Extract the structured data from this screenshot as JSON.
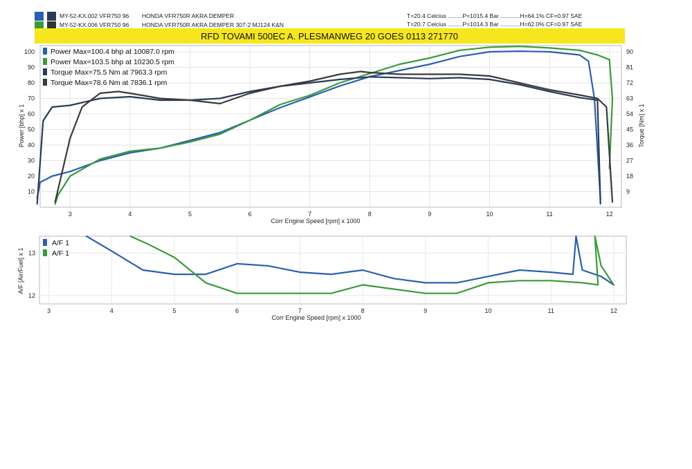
{
  "header": {
    "runs": [
      {
        "id": "MY-52-KX.002 VFR750 96",
        "desc": "HONDA VFR750R AKRA DEMPER",
        "colors": [
          "#2a5fb0",
          "#2b3a5a"
        ]
      },
      {
        "id": "MY-52-KX.006 VFR750 96",
        "desc": "HONDA VFR750R AKRA DEMPER 307-2 MJ124 K&N",
        "colors": [
          "#3a9a3a",
          "#333333"
        ]
      }
    ],
    "conditions": [
      "T=20.4 Celcius .........P=1015.4 Bar ............H=64.1% CF=0.97 SAE",
      "T=20.7 Celcius .........P=1014.3 Bar ............H=62.0% CF=0.97 SAE"
    ],
    "banner": "RFD TOVAMI 500EC  A. PLESMANWEG 20 GOES 0113 271770",
    "banner_color": "#f5e61e"
  },
  "chart_data": [
    {
      "type": "line",
      "xlabel": "Corr Engine Speed [rpm] x 1000",
      "ylabel": "Power [bhp] x 1",
      "y2label": "Torque [Nm] x 1",
      "xlim": [
        2.5,
        12.2
      ],
      "ylim": [
        0,
        104
      ],
      "y2lim": [
        0,
        93.6
      ],
      "xticks": [
        "3",
        "4",
        "5",
        "6",
        "7",
        "8",
        "9",
        "10",
        "11",
        "12"
      ],
      "yticks": [
        "10",
        "20",
        "30",
        "40",
        "50",
        "60",
        "70",
        "80",
        "90",
        "100"
      ],
      "y2ticks": [
        "9",
        "18",
        "27",
        "36",
        "45",
        "54",
        "63",
        "72",
        "81",
        "90"
      ],
      "legend": [
        "Power Max=100.4 bhp at 10087.0 rpm",
        "Power Max=103.5 bhp at 10230.5 rpm",
        "Torque  Max=75.5 Nm at 7963.3 rpm",
        "Torque  Max=78.6 Nm at 7836.1 rpm"
      ],
      "series": [
        {
          "name": "Power Max=100.4 bhp at 10087.0 rpm",
          "axis": "left",
          "color": "#2a5fb0",
          "points": [
            [
              2.45,
              6
            ],
            [
              2.5,
              16
            ],
            [
              2.7,
              20
            ],
            [
              3.0,
              23
            ],
            [
              3.5,
              30
            ],
            [
              4.0,
              35
            ],
            [
              4.5,
              38
            ],
            [
              5.0,
              43
            ],
            [
              5.5,
              48
            ],
            [
              6.0,
              56
            ],
            [
              6.5,
              64
            ],
            [
              7.0,
              71
            ],
            [
              7.5,
              78
            ],
            [
              8.0,
              84
            ],
            [
              8.5,
              88
            ],
            [
              9.0,
              92
            ],
            [
              9.5,
              97
            ],
            [
              10.0,
              100
            ],
            [
              10.5,
              100.4
            ],
            [
              11.0,
              100
            ],
            [
              11.5,
              98
            ],
            [
              11.65,
              94
            ],
            [
              11.75,
              70
            ],
            [
              11.85,
              5
            ]
          ]
        },
        {
          "name": "Power Max=103.5 bhp at 10230.5 rpm",
          "axis": "left",
          "color": "#3a9a3a",
          "points": [
            [
              2.75,
              2
            ],
            [
              2.8,
              8
            ],
            [
              3.0,
              20
            ],
            [
              3.5,
              31
            ],
            [
              4.0,
              36
            ],
            [
              4.5,
              38
            ],
            [
              5.0,
              42
            ],
            [
              5.5,
              47
            ],
            [
              6.0,
              56
            ],
            [
              6.5,
              66
            ],
            [
              7.0,
              72
            ],
            [
              7.5,
              80
            ],
            [
              8.0,
              86
            ],
            [
              8.5,
              92
            ],
            [
              9.0,
              96
            ],
            [
              9.5,
              101
            ],
            [
              10.0,
              103
            ],
            [
              10.5,
              103.5
            ],
            [
              11.0,
              102.5
            ],
            [
              11.5,
              101
            ],
            [
              11.8,
              98
            ],
            [
              12.0,
              95
            ],
            [
              12.05,
              70
            ],
            [
              12.0,
              25
            ]
          ]
        },
        {
          "name": "Torque  Max=75.5 Nm at 7963.3 rpm",
          "axis": "right",
          "color": "#2b3a5a",
          "points": [
            [
              2.45,
              2
            ],
            [
              2.55,
              50
            ],
            [
              2.7,
              58
            ],
            [
              3.0,
              59
            ],
            [
              3.5,
              63
            ],
            [
              4.0,
              64
            ],
            [
              4.5,
              62
            ],
            [
              5.0,
              62
            ],
            [
              5.5,
              63
            ],
            [
              6.0,
              67
            ],
            [
              6.5,
              70
            ],
            [
              7.0,
              72
            ],
            [
              7.5,
              74
            ],
            [
              8.0,
              75.5
            ],
            [
              8.5,
              75
            ],
            [
              9.0,
              74.5
            ],
            [
              9.5,
              75
            ],
            [
              10.0,
              74
            ],
            [
              10.5,
              71
            ],
            [
              11.0,
              67
            ],
            [
              11.5,
              63.5
            ],
            [
              11.7,
              62.5
            ],
            [
              11.8,
              62
            ],
            [
              11.85,
              2
            ]
          ]
        },
        {
          "name": "Torque  Max=78.6 Nm at 7836.1 rpm",
          "axis": "right",
          "color": "#3a3a3a",
          "points": [
            [
              2.75,
              3
            ],
            [
              3.0,
              40
            ],
            [
              3.2,
              58
            ],
            [
              3.5,
              66
            ],
            [
              3.8,
              67
            ],
            [
              4.0,
              66
            ],
            [
              4.5,
              63
            ],
            [
              5.0,
              62
            ],
            [
              5.5,
              60
            ],
            [
              6.0,
              66
            ],
            [
              6.5,
              70
            ],
            [
              7.0,
              73
            ],
            [
              7.5,
              77
            ],
            [
              7.85,
              78.6
            ],
            [
              8.0,
              78
            ],
            [
              8.5,
              77
            ],
            [
              9.0,
              77
            ],
            [
              9.5,
              77
            ],
            [
              10.0,
              76
            ],
            [
              10.5,
              72
            ],
            [
              11.0,
              68
            ],
            [
              11.5,
              65
            ],
            [
              11.8,
              63
            ],
            [
              11.95,
              58
            ],
            [
              12.05,
              3
            ]
          ]
        }
      ]
    },
    {
      "type": "line",
      "xlabel": "Corr Engine Speed [rpm] x 1000",
      "ylabel": "A/F [Air/Fuel] x 1",
      "xlim": [
        2.85,
        12.2
      ],
      "ylim": [
        11.8,
        13.4
      ],
      "xticks": [
        "3",
        "4",
        "5",
        "6",
        "7",
        "8",
        "9",
        "10",
        "11",
        "12"
      ],
      "yticks": [
        "12",
        "13"
      ],
      "legend": [
        "A/F 1",
        "A/F 1"
      ],
      "series": [
        {
          "name": "A/F 1",
          "color": "#2a5fb0",
          "points": [
            [
              3.6,
              13.4
            ],
            [
              4.0,
              13.05
            ],
            [
              4.5,
              12.6
            ],
            [
              5.0,
              12.5
            ],
            [
              5.5,
              12.5
            ],
            [
              6.0,
              12.75
            ],
            [
              6.5,
              12.7
            ],
            [
              7.0,
              12.55
            ],
            [
              7.5,
              12.5
            ],
            [
              8.0,
              12.6
            ],
            [
              8.5,
              12.4
            ],
            [
              9.0,
              12.3
            ],
            [
              9.5,
              12.3
            ],
            [
              10.0,
              12.45
            ],
            [
              10.5,
              12.6
            ],
            [
              11.0,
              12.55
            ],
            [
              11.35,
              12.5
            ],
            [
              11.4,
              13.4
            ],
            [
              11.5,
              12.6
            ],
            [
              11.8,
              12.45
            ],
            [
              12.0,
              12.25
            ]
          ]
        },
        {
          "name": "A/F 1",
          "color": "#3a9a3a",
          "points": [
            [
              4.3,
              13.4
            ],
            [
              4.6,
              13.2
            ],
            [
              5.0,
              12.9
            ],
            [
              5.5,
              12.3
            ],
            [
              6.0,
              12.05
            ],
            [
              6.5,
              12.05
            ],
            [
              7.0,
              12.05
            ],
            [
              7.5,
              12.05
            ],
            [
              8.0,
              12.25
            ],
            [
              8.5,
              12.15
            ],
            [
              9.0,
              12.05
            ],
            [
              9.5,
              12.05
            ],
            [
              10.0,
              12.3
            ],
            [
              10.5,
              12.35
            ],
            [
              11.0,
              12.35
            ],
            [
              11.5,
              12.3
            ],
            [
              11.75,
              12.25
            ],
            [
              11.7,
              13.4
            ],
            [
              11.8,
              12.7
            ],
            [
              12.0,
              12.25
            ]
          ]
        }
      ]
    }
  ]
}
